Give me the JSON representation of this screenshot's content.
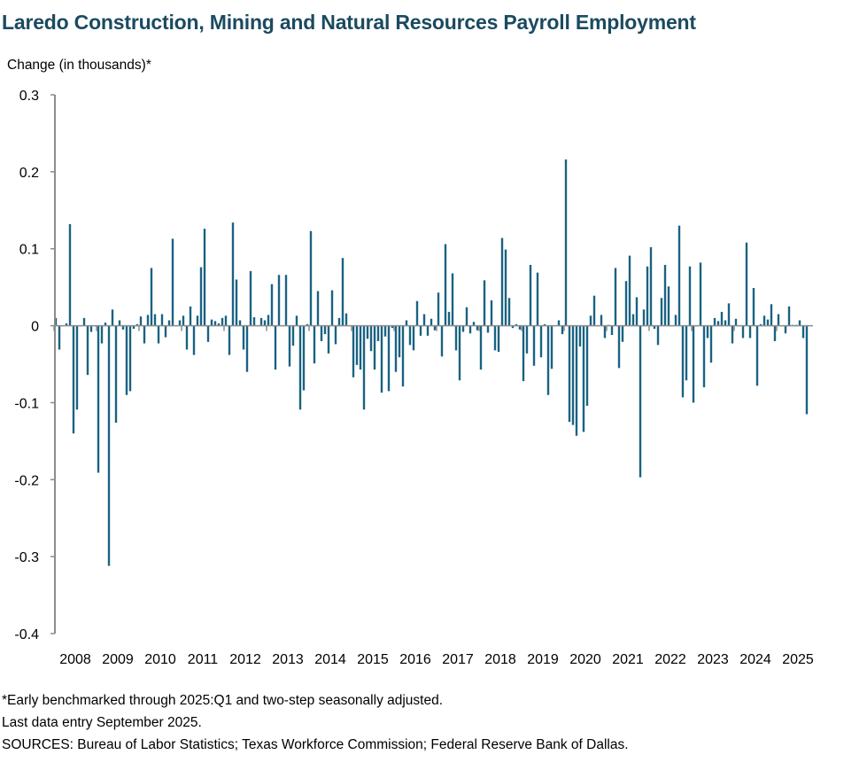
{
  "chart_data": {
    "type": "bar",
    "title": "Laredo Construction, Mining and Natural Resources Payroll Employment",
    "ylabel": "Change (in thousands)*",
    "xlabel": "",
    "ylim": [
      -0.4,
      0.3
    ],
    "yticks": [
      "0.3",
      "0.2",
      "0.1",
      "0",
      "-0.1",
      "-0.2",
      "-0.3",
      "-0.4"
    ],
    "ytick_values": [
      0.3,
      0.2,
      0.1,
      0,
      -0.1,
      -0.2,
      -0.3,
      -0.4
    ],
    "xticks": [
      "2008",
      "2009",
      "2010",
      "2011",
      "2012",
      "2013",
      "2014",
      "2015",
      "2016",
      "2017",
      "2018",
      "2019",
      "2020",
      "2021",
      "2022",
      "2023",
      "2024",
      "2025"
    ],
    "frequency": "monthly",
    "start": "2008-01",
    "end": "2025-09",
    "grid": false,
    "bar_color": "#1a6282",
    "values": [
      0.01,
      -0.031,
      0,
      0.003,
      0.132,
      -0.14,
      -0.109,
      0,
      0.01,
      -0.064,
      -0.008,
      0,
      -0.191,
      -0.023,
      0.004,
      -0.312,
      0.021,
      -0.126,
      0.007,
      -0.005,
      -0.09,
      -0.085,
      -0.004,
      0.002,
      0.012,
      -0.023,
      0.014,
      0.075,
      0.015,
      -0.023,
      0.015,
      -0.015,
      0.007,
      0.113,
      0,
      0.007,
      0.013,
      -0.031,
      0.025,
      -0.038,
      0.013,
      0.076,
      0.126,
      -0.021,
      0.008,
      0.006,
      0.003,
      0.01,
      0.013,
      -0.038,
      0.134,
      0.06,
      0.007,
      -0.031,
      -0.06,
      0.071,
      0.011,
      0,
      0.01,
      0.007,
      0.014,
      0.054,
      -0.057,
      0.066,
      0,
      0.066,
      -0.053,
      -0.026,
      0.013,
      -0.109,
      -0.084,
      0.002,
      0.123,
      -0.049,
      0.045,
      -0.02,
      -0.011,
      -0.036,
      0.046,
      -0.024,
      0.01,
      0.088,
      0.016,
      0,
      -0.067,
      -0.051,
      -0.057,
      -0.109,
      -0.017,
      -0.033,
      -0.057,
      -0.02,
      -0.087,
      -0.014,
      -0.085,
      -0.003,
      -0.06,
      -0.041,
      -0.079,
      0.007,
      -0.025,
      -0.032,
      0.032,
      -0.013,
      0.015,
      -0.013,
      0.009,
      -0.006,
      0.043,
      -0.04,
      0.106,
      0.018,
      0.068,
      -0.032,
      -0.071,
      -0.008,
      0.024,
      -0.01,
      0.005,
      -0.006,
      -0.057,
      0.059,
      -0.009,
      0.033,
      -0.032,
      -0.034,
      0.114,
      0.099,
      0.036,
      -0.003,
      0.002,
      -0.005,
      -0.072,
      -0.036,
      0.079,
      -0.052,
      0.069,
      -0.041,
      0.002,
      -0.09,
      -0.056,
      0,
      0.007,
      -0.011,
      0.216,
      -0.125,
      -0.129,
      -0.143,
      -0.027,
      -0.138,
      -0.104,
      0.013,
      0.039,
      0,
      0.014,
      -0.016,
      0.001,
      -0.012,
      0.075,
      -0.055,
      -0.021,
      0.058,
      0.091,
      0.015,
      0.037,
      -0.197,
      0.021,
      0.077,
      0.102,
      -0.004,
      -0.025,
      0.036,
      0.079,
      0.051,
      0,
      0.014,
      0.13,
      -0.093,
      -0.071,
      0.077,
      -0.1,
      0,
      0.082,
      -0.08,
      -0.016,
      -0.048,
      0.01,
      0.006,
      0.018,
      0.007,
      0.029,
      -0.023,
      0.009,
      0,
      -0.016,
      0.108,
      -0.016,
      0.049,
      -0.078,
      0.002,
      0.013,
      0.008,
      0.028,
      -0.02,
      0.015,
      0,
      -0.01,
      0.025,
      0.001,
      0.001,
      0.007,
      -0.016,
      -0.115
    ]
  },
  "notes": {
    "line1": "*Early benchmarked through 2025:Q1 and two-step seasonally adjusted.",
    "line2": "Last data entry September 2025.",
    "line3": "SOURCES: Bureau of Labor Statistics; Texas Workforce Commission; Federal Reserve Bank of Dallas."
  }
}
